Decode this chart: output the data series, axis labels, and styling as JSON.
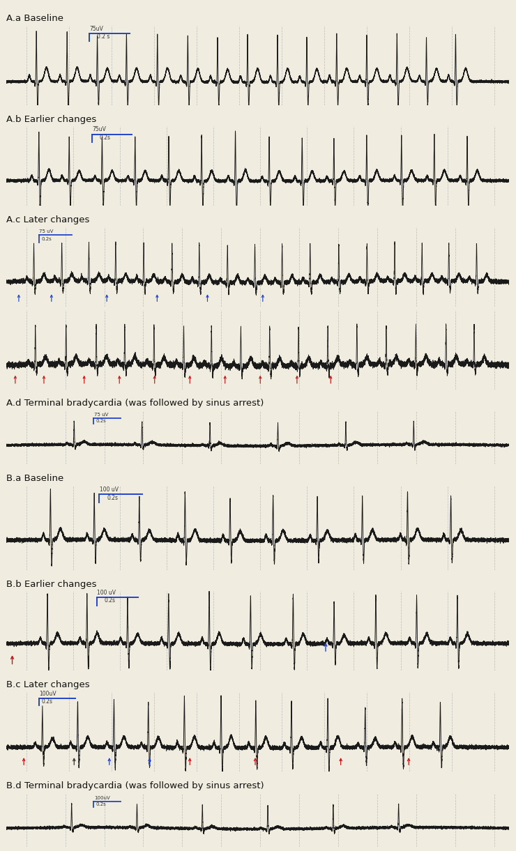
{
  "bg_color": "#f0ece0",
  "line_color": "#1a1a1a",
  "grid_color": "#bbbbbb",
  "blue_color": "#2244cc",
  "red_color": "#cc1111",
  "sections": [
    {
      "label": "A.a Baseline",
      "scale_uv": "75uV",
      "scale_t": "0.2 s"
    },
    {
      "label": "A.b Earlier changes",
      "scale_uv": "75uV",
      "scale_t": "0.2s"
    },
    {
      "label": "A.c Later changes",
      "scale_uv": "75 uV",
      "scale_t": "0.2s"
    },
    {
      "label": "A.d Terminal bradycardia (was followed by sinus arrest)",
      "scale_uv": "75 uV",
      "scale_t": "0.2s"
    },
    {
      "label": "B.a Baseline",
      "scale_uv": "100 uV",
      "scale_t": "0.2s"
    },
    {
      "label": "B.b Earlier changes",
      "scale_uv": "100 uV",
      "scale_t": "0.2s"
    },
    {
      "label": "B.c Later changes",
      "scale_uv": "100uV",
      "scale_t": "0.2s"
    },
    {
      "label": "B.d Terminal bradycardia (was followed by sinus arrest)",
      "scale_uv": "100uV",
      "scale_t": "0.2s"
    }
  ]
}
